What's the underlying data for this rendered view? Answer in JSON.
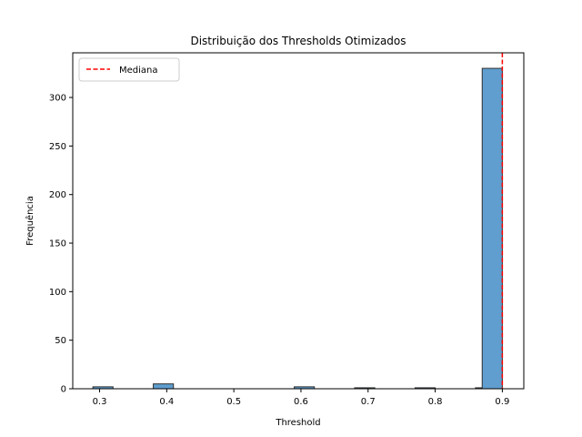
{
  "chart_data": {
    "type": "bar",
    "title": "Distribuição dos Thresholds Otimizados",
    "xlabel": "Threshold",
    "ylabel": "Frequência",
    "xlim": [
      0.26,
      0.932
    ],
    "ylim": [
      0,
      346
    ],
    "x_ticks": [
      "0.3",
      "0.4",
      "0.5",
      "0.6",
      "0.7",
      "0.8",
      "0.9"
    ],
    "y_ticks": [
      "0",
      "50",
      "100",
      "150",
      "200",
      "250",
      "300"
    ],
    "bin_width": 0.03,
    "bins": [
      {
        "x0": 0.29,
        "x1": 0.32,
        "count": 2
      },
      {
        "x0": 0.32,
        "x1": 0.35,
        "count": 0
      },
      {
        "x0": 0.35,
        "x1": 0.38,
        "count": 0
      },
      {
        "x0": 0.38,
        "x1": 0.41,
        "count": 5
      },
      {
        "x0": 0.41,
        "x1": 0.44,
        "count": 0
      },
      {
        "x0": 0.44,
        "x1": 0.47,
        "count": 0
      },
      {
        "x0": 0.47,
        "x1": 0.5,
        "count": 0
      },
      {
        "x0": 0.5,
        "x1": 0.53,
        "count": 0
      },
      {
        "x0": 0.53,
        "x1": 0.56,
        "count": 0
      },
      {
        "x0": 0.56,
        "x1": 0.59,
        "count": 0
      },
      {
        "x0": 0.59,
        "x1": 0.62,
        "count": 2
      },
      {
        "x0": 0.62,
        "x1": 0.65,
        "count": 0
      },
      {
        "x0": 0.65,
        "x1": 0.68,
        "count": 0
      },
      {
        "x0": 0.68,
        "x1": 0.71,
        "count": 1
      },
      {
        "x0": 0.71,
        "x1": 0.74,
        "count": 0
      },
      {
        "x0": 0.74,
        "x1": 0.77,
        "count": 0
      },
      {
        "x0": 0.77,
        "x1": 0.8,
        "count": 1
      },
      {
        "x0": 0.8,
        "x1": 0.83,
        "count": 0
      },
      {
        "x0": 0.83,
        "x1": 0.86,
        "count": 0
      },
      {
        "x0": 0.86,
        "x1": 0.87,
        "count": 1
      },
      {
        "x0": 0.87,
        "x1": 0.9,
        "count": 330
      }
    ],
    "median_line": {
      "x": 0.9,
      "label": "Mediana",
      "color": "#ff0000",
      "style": "dashed"
    },
    "legend_placement": "top-left",
    "grid": false,
    "bar_color": "#5f9ecf",
    "bar_edge_color": "#2f2f2f"
  }
}
